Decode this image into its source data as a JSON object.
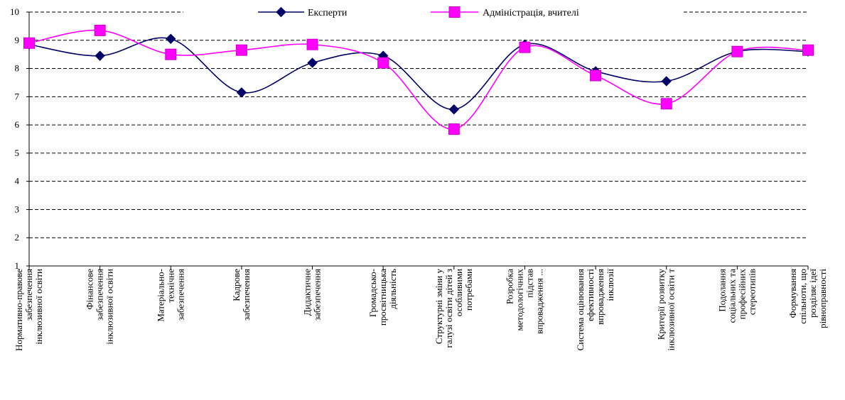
{
  "chart_data": {
    "type": "line",
    "categories": [
      [
        "Нормативно-правове",
        "забезпечення",
        "інклюзивної освіти"
      ],
      [
        "Фінансове",
        "забезпечення",
        "інклюзивної освіти"
      ],
      [
        "Матеріально-",
        "технічне",
        "забезпечення"
      ],
      [
        "Кадрове",
        "забезпечення"
      ],
      [
        "Дидактичне",
        "забезпечення"
      ],
      [
        "Громадсько-",
        "просвітницька",
        "діяльність"
      ],
      [
        "Структурні зміни у",
        "галузі освіти дітей з",
        "особливими",
        "потребами"
      ],
      [
        "Розробка",
        "методологічних",
        "підстав",
        "впровадження ..."
      ],
      [
        "Система  оцінювання",
        "ефективності",
        "впровадження",
        "інклюзії"
      ],
      [
        "Критерії розвитку",
        "інклюзивної освіти т"
      ],
      [
        "Подолання",
        "соціальних та",
        "професійних",
        "стереотипів"
      ],
      [
        "Формування",
        "спільноти, що",
        "розділяє ідеї",
        "рівноправності"
      ]
    ],
    "series": [
      {
        "name": "Експерти",
        "color": "#000066",
        "marker": "diamond",
        "values": [
          8.85,
          8.45,
          9.05,
          7.15,
          8.2,
          8.45,
          6.55,
          8.85,
          7.9,
          7.55,
          8.6,
          8.6
        ]
      },
      {
        "name": "Адміністрація, вчителі",
        "color": "#FF00FF",
        "marker": "square",
        "values": [
          8.9,
          9.35,
          8.5,
          8.65,
          8.85,
          8.2,
          5.85,
          8.75,
          7.75,
          6.75,
          8.6,
          8.65
        ]
      }
    ],
    "ylim": [
      1,
      10
    ],
    "yticks": [
      "1",
      "2",
      "3",
      "4",
      "5",
      "6",
      "7",
      "8",
      "9",
      "10"
    ],
    "grid": "horizontal dashed",
    "legend": "top"
  }
}
